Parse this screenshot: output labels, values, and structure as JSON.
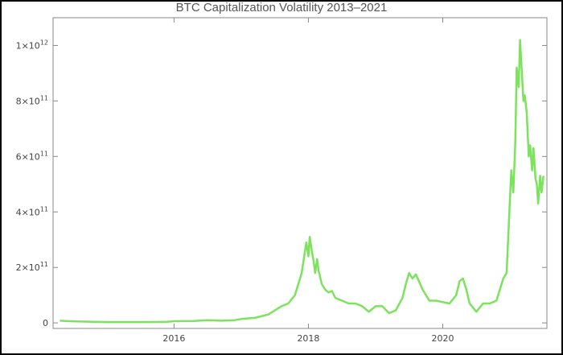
{
  "chart_data": {
    "type": "line",
    "title": "BTC Capitalization Volatility 2013–2021",
    "xlabel": "",
    "ylabel": "",
    "xlim": [
      2014.2,
      2021.55
    ],
    "ylim": [
      -20000000000.0,
      1100000000000.0
    ],
    "x_ticks": [
      2016,
      2018,
      2020
    ],
    "x_tick_labels": [
      "2016",
      "2018",
      "2020"
    ],
    "y_ticks": [
      0,
      200000000000.0,
      400000000000.0,
      600000000000.0,
      800000000000.0,
      1000000000000.0
    ],
    "y_tick_labels": [
      {
        "mantissa": "0",
        "exp": ""
      },
      {
        "mantissa": "2×10",
        "exp": "11"
      },
      {
        "mantissa": "4×10",
        "exp": "11"
      },
      {
        "mantissa": "6×10",
        "exp": "11"
      },
      {
        "mantissa": "8×10",
        "exp": "11"
      },
      {
        "mantissa": "1×10",
        "exp": "12"
      }
    ],
    "grid": false,
    "color": "#7be35c",
    "series": [
      {
        "x": [
          2014.3,
          2014.45,
          2014.6,
          2014.8,
          2015.0,
          2015.3,
          2015.6,
          2015.9,
          2016.0,
          2016.3,
          2016.5,
          2016.7,
          2016.9,
          2017.0,
          2017.2,
          2017.4,
          2017.5,
          2017.6,
          2017.7,
          2017.8,
          2017.85,
          2017.9,
          2017.95,
          2017.97,
          2018.0,
          2018.02,
          2018.05,
          2018.08,
          2018.1,
          2018.13,
          2018.15,
          2018.2,
          2018.25,
          2018.3,
          2018.35,
          2018.4,
          2018.5,
          2018.6,
          2018.7,
          2018.8,
          2018.9,
          2019.0,
          2019.1,
          2019.2,
          2019.3,
          2019.4,
          2019.45,
          2019.5,
          2019.55,
          2019.6,
          2019.7,
          2019.8,
          2019.9,
          2020.0,
          2020.1,
          2020.2,
          2020.25,
          2020.3,
          2020.35,
          2020.4,
          2020.5,
          2020.6,
          2020.7,
          2020.8,
          2020.9,
          2020.95,
          2021.0,
          2021.02,
          2021.05,
          2021.08,
          2021.1,
          2021.13,
          2021.15,
          2021.2,
          2021.22,
          2021.25,
          2021.28,
          2021.3,
          2021.33,
          2021.35,
          2021.38,
          2021.4,
          2021.42,
          2021.45,
          2021.47,
          2021.5
        ],
        "y": [
          8000000000.0,
          6000000000.0,
          5000000000.0,
          4000000000.0,
          3000000000.0,
          3000000000.0,
          3000000000.0,
          4000000000.0,
          6000000000.0,
          7000000000.0,
          10000000000.0,
          8000000000.0,
          10000000000.0,
          14000000000.0,
          18000000000.0,
          30000000000.0,
          45000000000.0,
          60000000000.0,
          70000000000.0,
          100000000000.0,
          140000000000.0,
          180000000000.0,
          260000000000.0,
          290000000000.0,
          240000000000.0,
          310000000000.0,
          260000000000.0,
          220000000000.0,
          180000000000.0,
          230000000000.0,
          190000000000.0,
          140000000000.0,
          120000000000.0,
          110000000000.0,
          115000000000.0,
          90000000000.0,
          80000000000.0,
          70000000000.0,
          70000000000.0,
          60000000000.0,
          40000000000.0,
          60000000000.0,
          60000000000.0,
          35000000000.0,
          45000000000.0,
          90000000000.0,
          140000000000.0,
          180000000000.0,
          160000000000.0,
          175000000000.0,
          120000000000.0,
          80000000000.0,
          80000000000.0,
          75000000000.0,
          70000000000.0,
          100000000000.0,
          150000000000.0,
          160000000000.0,
          120000000000.0,
          70000000000.0,
          40000000000.0,
          70000000000.0,
          70000000000.0,
          80000000000.0,
          160000000000.0,
          180000000000.0,
          450000000000.0,
          550000000000.0,
          470000000000.0,
          650000000000.0,
          920000000000.0,
          850000000000.0,
          1020000000000.0,
          800000000000.0,
          820000000000.0,
          760000000000.0,
          600000000000.0,
          640000000000.0,
          550000000000.0,
          630000000000.0,
          520000000000.0,
          500000000000.0,
          430000000000.0,
          530000000000.0,
          470000000000.0,
          530000000000.0
        ]
      }
    ]
  }
}
